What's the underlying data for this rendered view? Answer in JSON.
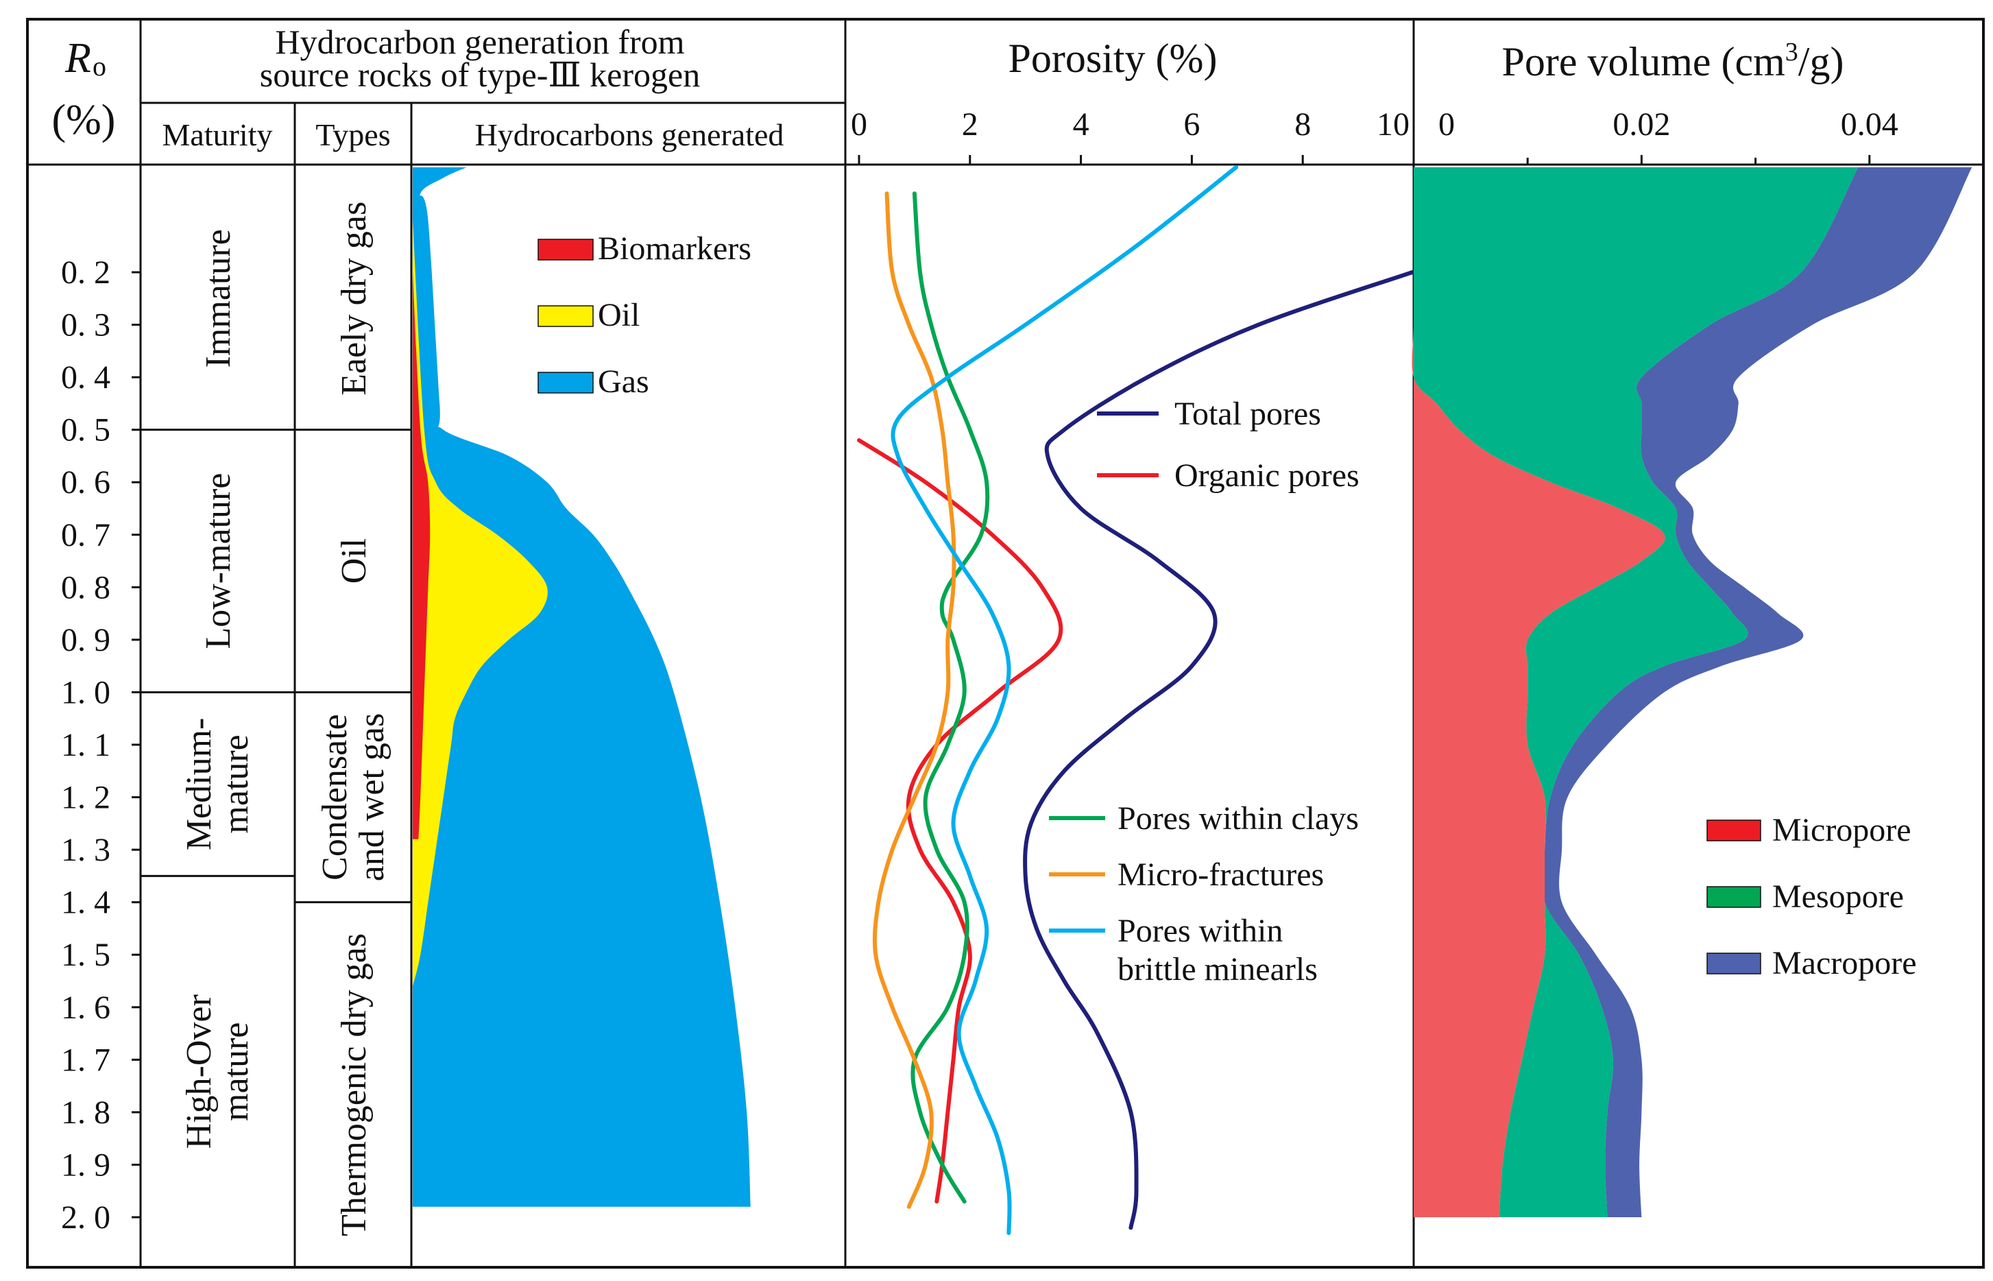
{
  "header": {
    "ro_label_r": "R",
    "ro_label_sub": "o",
    "ro_unit": "(%)",
    "hc_title_line1": "Hydrocarbon generation from",
    "hc_title_line2": "source rocks of type-Ⅲ kerogen",
    "col_maturity": "Maturity",
    "col_types": "Types",
    "col_hydrocarbons": "Hydrocarbons  generated"
  },
  "maturity_zones": [
    {
      "label": "Immature",
      "from": 0.0,
      "to": 0.5
    },
    {
      "label": "Low-mature",
      "from": 0.5,
      "to": 1.0
    },
    {
      "label_line1": "Medium-",
      "label_line2": "mature",
      "from": 1.0,
      "to": 1.35
    },
    {
      "label_line1": "High-Over",
      "label_line2": "mature",
      "from": 1.35,
      "to": 2.1
    }
  ],
  "type_zones": [
    {
      "label": "Eaely dry gas",
      "from": 0.0,
      "to": 0.5
    },
    {
      "label": "Oil",
      "from": 0.5,
      "to": 1.0
    },
    {
      "label_line1": "Condensate",
      "label_line2": "and wet gas",
      "from": 1.0,
      "to": 1.4
    },
    {
      "label": "Thermogenic dry gas",
      "from": 1.4,
      "to": 2.1
    }
  ],
  "chart_data": [
    {
      "type": "area",
      "panel": "hydrocarbons_generated",
      "y_axis": {
        "ticks": [
          0.2,
          0.3,
          0.4,
          0.5,
          0.6,
          0.7,
          0.8,
          0.9,
          1.0,
          1.1,
          1.2,
          1.3,
          1.4,
          1.5,
          1.6,
          1.7,
          1.8,
          1.9,
          2.0
        ],
        "tick_labels": [
          "0. 2",
          "0. 3",
          "0. 4",
          "0. 5",
          "0. 6",
          "0. 7",
          "0. 8",
          "0. 9",
          "1. 0",
          "1. 1",
          "1. 2",
          "1. 3",
          "1. 4",
          "1. 5",
          "1. 6",
          "1. 7",
          "1. 8",
          "1. 9",
          "2. 0"
        ],
        "range": [
          -0.2,
          2.1
        ],
        "inverted": true
      },
      "xlim": [
        0,
        1
      ],
      "series": [
        {
          "name": "Gas",
          "color": "#00a2e8",
          "ro": [
            0.0,
            0.02,
            0.05,
            0.1,
            0.45,
            0.5,
            0.55,
            0.6,
            0.65,
            0.7,
            0.75,
            0.8,
            0.9,
            1.0,
            1.2,
            1.4,
            1.6,
            1.8,
            1.98
          ],
          "values": [
            0.14,
            0.08,
            0.02,
            0.04,
            0.07,
            0.08,
            0.25,
            0.35,
            0.4,
            0.47,
            0.52,
            0.56,
            0.63,
            0.68,
            0.75,
            0.8,
            0.84,
            0.87,
            0.88
          ]
        },
        {
          "name": "Oil",
          "color": "#fff200",
          "ro": [
            0.1,
            0.5,
            0.6,
            0.65,
            0.7,
            0.75,
            0.8,
            0.85,
            0.9,
            0.95,
            1.0,
            1.05,
            1.1,
            1.2,
            1.3,
            1.4,
            1.5,
            1.56
          ],
          "values": [
            0.0,
            0.03,
            0.06,
            0.12,
            0.22,
            0.3,
            0.35,
            0.33,
            0.25,
            0.18,
            0.14,
            0.11,
            0.1,
            0.08,
            0.06,
            0.04,
            0.02,
            0.0
          ]
        },
        {
          "name": "Biomarkers",
          "color": "#ed1c24",
          "ro": [
            0.2,
            0.5,
            0.6,
            0.7,
            0.8,
            0.9,
            1.0,
            1.1,
            1.2,
            1.28
          ],
          "values": [
            0.0,
            0.02,
            0.04,
            0.045,
            0.04,
            0.035,
            0.03,
            0.025,
            0.02,
            0.015
          ]
        }
      ]
    },
    {
      "type": "line",
      "panel": "porosity",
      "title": "Porosity (%)",
      "x_axis": {
        "range": [
          0,
          10
        ],
        "ticks": [
          0,
          2,
          4,
          6,
          8,
          10
        ],
        "tick_labels": [
          "0",
          "2",
          "4",
          "6",
          "8",
          "10"
        ]
      },
      "series": [
        {
          "name": "Total pores",
          "color": "#1f1f7a",
          "ro": [
            0.2,
            0.3,
            0.4,
            0.5,
            0.55,
            0.65,
            0.75,
            0.85,
            0.95,
            1.05,
            1.15,
            1.25,
            1.35,
            1.45,
            1.55,
            1.65,
            1.8,
            1.95,
            2.02
          ],
          "values": [
            10.0,
            7.2,
            5.2,
            3.7,
            3.4,
            4.0,
            5.4,
            6.4,
            6.0,
            4.8,
            3.7,
            3.1,
            3.0,
            3.2,
            3.7,
            4.3,
            4.9,
            5.0,
            4.9
          ]
        },
        {
          "name": "Organic pores",
          "color": "#ed1c24",
          "ro": [
            0.52,
            0.6,
            0.7,
            0.8,
            0.9,
            1.0,
            1.1,
            1.2,
            1.3,
            1.4,
            1.5,
            1.6,
            1.7,
            1.8,
            1.9,
            1.97
          ],
          "values": [
            0.0,
            1.2,
            2.4,
            3.3,
            3.6,
            2.5,
            1.4,
            0.9,
            1.1,
            1.7,
            2.0,
            1.8,
            1.7,
            1.6,
            1.5,
            1.4
          ]
        },
        {
          "name": "Pores within clays",
          "color": "#00a651",
          "ro": [
            0.05,
            0.2,
            0.3,
            0.4,
            0.5,
            0.6,
            0.7,
            0.8,
            0.85,
            0.9,
            1.0,
            1.1,
            1.2,
            1.3,
            1.4,
            1.5,
            1.6,
            1.7,
            1.8,
            1.9,
            1.97
          ],
          "values": [
            1.0,
            1.1,
            1.3,
            1.6,
            2.0,
            2.3,
            2.2,
            1.6,
            1.5,
            1.7,
            1.9,
            1.6,
            1.2,
            1.4,
            1.9,
            1.9,
            1.6,
            1.0,
            1.1,
            1.5,
            1.9
          ]
        },
        {
          "name": "Micro-fractures",
          "color": "#f7941d",
          "ro": [
            0.05,
            0.2,
            0.3,
            0.4,
            0.5,
            0.6,
            0.7,
            0.8,
            0.9,
            1.0,
            1.1,
            1.2,
            1.3,
            1.4,
            1.5,
            1.6,
            1.7,
            1.8,
            1.9,
            1.98
          ],
          "values": [
            0.5,
            0.6,
            0.9,
            1.3,
            1.5,
            1.6,
            1.7,
            1.7,
            1.6,
            1.6,
            1.4,
            1.0,
            0.6,
            0.35,
            0.3,
            0.6,
            1.0,
            1.3,
            1.2,
            0.9
          ]
        },
        {
          "name_line1": "Pores within",
          "name_line2": "brittle minearls",
          "color": "#00aeef",
          "ro": [
            0.0,
            0.15,
            0.3,
            0.4,
            0.48,
            0.55,
            0.65,
            0.75,
            0.85,
            0.95,
            1.05,
            1.15,
            1.25,
            1.35,
            1.45,
            1.55,
            1.65,
            1.75,
            1.85,
            1.95,
            2.03
          ],
          "values": [
            6.8,
            5.0,
            3.0,
            1.6,
            0.7,
            0.7,
            1.2,
            1.8,
            2.4,
            2.7,
            2.5,
            2.0,
            1.7,
            2.0,
            2.3,
            2.1,
            1.8,
            2.1,
            2.5,
            2.7,
            2.7
          ]
        }
      ]
    },
    {
      "type": "area",
      "panel": "pore_volume",
      "title": "Pore volume (cm³/g)",
      "title_main": "Pore volume (cm",
      "title_sup": "3",
      "title_end": "/g)",
      "x_axis": {
        "range": [
          0,
          0.05
        ],
        "ticks": [
          0,
          0.02,
          0.04
        ],
        "tick_labels": [
          "0",
          "0.02",
          "0.04"
        ]
      },
      "stacked": true,
      "ro": [
        0.0,
        0.2,
        0.3,
        0.4,
        0.45,
        0.5,
        0.55,
        0.6,
        0.65,
        0.7,
        0.75,
        0.8,
        0.85,
        0.9,
        0.95,
        1.0,
        1.1,
        1.2,
        1.3,
        1.4,
        1.5,
        1.6,
        1.7,
        1.8,
        1.9,
        2.0
      ],
      "series": [
        {
          "name": "Micropore",
          "color": "#f05a5e",
          "values": [
            0.0,
            0.0,
            0.0,
            0.0,
            0.002,
            0.004,
            0.007,
            0.012,
            0.018,
            0.022,
            0.02,
            0.016,
            0.012,
            0.01,
            0.01,
            0.01,
            0.01,
            0.0115,
            0.0115,
            0.0115,
            0.0115,
            0.0105,
            0.0095,
            0.0085,
            0.0078,
            0.0075
          ]
        },
        {
          "name": "Mesopore",
          "color": "#00b388",
          "values": [
            0.039,
            0.034,
            0.026,
            0.02,
            0.018,
            0.016,
            0.013,
            0.009,
            0.005,
            0.001,
            0.004,
            0.01,
            0.016,
            0.019,
            0.012,
            0.008,
            0.004,
            0.0005,
            0.0,
            0.0,
            0.003,
            0.006,
            0.008,
            0.0085,
            0.009,
            0.0095
          ]
        },
        {
          "name": "Macropore",
          "color": "#4f62ad",
          "values": [
            0.01,
            0.01,
            0.009,
            0.0085,
            0.0085,
            0.008,
            0.006,
            0.002,
            0.0015,
            0.0015,
            0.002,
            0.003,
            0.004,
            0.005,
            0.005,
            0.004,
            0.003,
            0.0015,
            0.0015,
            0.0015,
            0.0015,
            0.0025,
            0.0025,
            0.003,
            0.003,
            0.003
          ]
        }
      ]
    }
  ],
  "legends": {
    "hydrocarbons": [
      {
        "label": "Biomarkers",
        "color": "#ed1c24"
      },
      {
        "label": "Oil",
        "color": "#fff200"
      },
      {
        "label": "Gas",
        "color": "#00a2e8"
      }
    ],
    "porosity_upper": [
      {
        "label": "Total pores",
        "color": "#1f1f7a"
      },
      {
        "label": "Organic pores",
        "color": "#ed1c24"
      }
    ],
    "porosity_lower": [
      {
        "label": "Pores within clays",
        "color": "#00a651"
      },
      {
        "label": "Micro-fractures",
        "color": "#f7941d"
      },
      {
        "label_line1": "Pores within",
        "label_line2": "brittle minearls",
        "color": "#00aeef"
      }
    ],
    "pore_volume": [
      {
        "label": "Micropore",
        "color": "#ed1c24"
      },
      {
        "label": "Mesopore",
        "color": "#00a651"
      },
      {
        "label": "Macropore",
        "color": "#4f62ad"
      }
    ]
  }
}
